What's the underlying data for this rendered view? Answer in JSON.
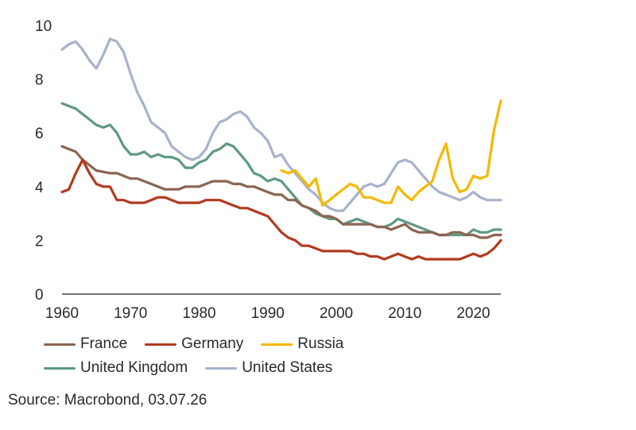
{
  "chart_data": {
    "type": "line",
    "title": "",
    "xlabel": "",
    "ylabel": "",
    "xlim": [
      1960,
      2024
    ],
    "ylim": [
      0,
      10
    ],
    "x_ticks": [
      1960,
      1970,
      1980,
      1990,
      2000,
      2010,
      2020
    ],
    "y_ticks": [
      0,
      2,
      4,
      6,
      8,
      10
    ],
    "grid": false,
    "legend_position": "bottom",
    "series": [
      {
        "name": "France",
        "color": "#8b6552",
        "points": [
          [
            1960,
            5.5
          ],
          [
            1962,
            5.3
          ],
          [
            1963,
            5.0
          ],
          [
            1965,
            4.6
          ],
          [
            1967,
            4.5
          ],
          [
            1968,
            4.5
          ],
          [
            1970,
            4.3
          ],
          [
            1971,
            4.3
          ],
          [
            1973,
            4.1
          ],
          [
            1975,
            3.9
          ],
          [
            1977,
            3.9
          ],
          [
            1978,
            4.0
          ],
          [
            1980,
            4.0
          ],
          [
            1982,
            4.2
          ],
          [
            1984,
            4.2
          ],
          [
            1985,
            4.1
          ],
          [
            1986,
            4.1
          ],
          [
            1987,
            4.0
          ],
          [
            1988,
            4.0
          ],
          [
            1990,
            3.8
          ],
          [
            1991,
            3.7
          ],
          [
            1992,
            3.7
          ],
          [
            1993,
            3.5
          ],
          [
            1994,
            3.5
          ],
          [
            1995,
            3.3
          ],
          [
            1996,
            3.2
          ],
          [
            1997,
            3.1
          ],
          [
            1998,
            2.9
          ],
          [
            1999,
            2.9
          ],
          [
            2000,
            2.8
          ],
          [
            2001,
            2.6
          ],
          [
            2002,
            2.6
          ],
          [
            2003,
            2.6
          ],
          [
            2004,
            2.6
          ],
          [
            2005,
            2.6
          ],
          [
            2006,
            2.5
          ],
          [
            2007,
            2.5
          ],
          [
            2008,
            2.4
          ],
          [
            2009,
            2.5
          ],
          [
            2010,
            2.6
          ],
          [
            2011,
            2.4
          ],
          [
            2012,
            2.3
          ],
          [
            2013,
            2.3
          ],
          [
            2014,
            2.3
          ],
          [
            2015,
            2.2
          ],
          [
            2016,
            2.2
          ],
          [
            2017,
            2.3
          ],
          [
            2018,
            2.3
          ],
          [
            2019,
            2.2
          ],
          [
            2020,
            2.2
          ],
          [
            2021,
            2.1
          ],
          [
            2022,
            2.1
          ],
          [
            2023,
            2.2
          ],
          [
            2024,
            2.2
          ]
        ]
      },
      {
        "name": "Germany",
        "color": "#b23a1f",
        "points": [
          [
            1960,
            3.8
          ],
          [
            1961,
            3.9
          ],
          [
            1962,
            4.5
          ],
          [
            1963,
            5.0
          ],
          [
            1964,
            4.5
          ],
          [
            1965,
            4.1
          ],
          [
            1966,
            4.0
          ],
          [
            1967,
            4.0
          ],
          [
            1968,
            3.5
          ],
          [
            1969,
            3.5
          ],
          [
            1970,
            3.4
          ],
          [
            1971,
            3.4
          ],
          [
            1972,
            3.4
          ],
          [
            1973,
            3.5
          ],
          [
            1974,
            3.6
          ],
          [
            1975,
            3.6
          ],
          [
            1976,
            3.5
          ],
          [
            1977,
            3.4
          ],
          [
            1978,
            3.4
          ],
          [
            1979,
            3.4
          ],
          [
            1980,
            3.4
          ],
          [
            1981,
            3.5
          ],
          [
            1982,
            3.5
          ],
          [
            1983,
            3.5
          ],
          [
            1984,
            3.4
          ],
          [
            1985,
            3.3
          ],
          [
            1986,
            3.2
          ],
          [
            1987,
            3.2
          ],
          [
            1988,
            3.1
          ],
          [
            1989,
            3.0
          ],
          [
            1990,
            2.9
          ],
          [
            1991,
            2.6
          ],
          [
            1992,
            2.3
          ],
          [
            1993,
            2.1
          ],
          [
            1994,
            2.0
          ],
          [
            1995,
            1.8
          ],
          [
            1996,
            1.8
          ],
          [
            1997,
            1.7
          ],
          [
            1998,
            1.6
          ],
          [
            1999,
            1.6
          ],
          [
            2000,
            1.6
          ],
          [
            2001,
            1.6
          ],
          [
            2002,
            1.6
          ],
          [
            2003,
            1.5
          ],
          [
            2004,
            1.5
          ],
          [
            2005,
            1.4
          ],
          [
            2006,
            1.4
          ],
          [
            2007,
            1.3
          ],
          [
            2008,
            1.4
          ],
          [
            2009,
            1.5
          ],
          [
            2010,
            1.4
          ],
          [
            2011,
            1.3
          ],
          [
            2012,
            1.4
          ],
          [
            2013,
            1.3
          ],
          [
            2014,
            1.3
          ],
          [
            2015,
            1.3
          ],
          [
            2016,
            1.3
          ],
          [
            2017,
            1.3
          ],
          [
            2018,
            1.3
          ],
          [
            2019,
            1.4
          ],
          [
            2020,
            1.5
          ],
          [
            2021,
            1.4
          ],
          [
            2022,
            1.5
          ],
          [
            2023,
            1.7
          ],
          [
            2024,
            2.0
          ]
        ]
      },
      {
        "name": "Russia",
        "color": "#f5b800",
        "points": [
          [
            1992,
            4.6
          ],
          [
            1993,
            4.5
          ],
          [
            1994,
            4.6
          ],
          [
            1995,
            4.3
          ],
          [
            1996,
            4.0
          ],
          [
            1997,
            4.3
          ],
          [
            1998,
            3.3
          ],
          [
            1999,
            3.5
          ],
          [
            2000,
            3.7
          ],
          [
            2001,
            3.9
          ],
          [
            2002,
            4.1
          ],
          [
            2003,
            4.0
          ],
          [
            2004,
            3.6
          ],
          [
            2005,
            3.6
          ],
          [
            2006,
            3.5
          ],
          [
            2007,
            3.4
          ],
          [
            2008,
            3.4
          ],
          [
            2009,
            4.0
          ],
          [
            2010,
            3.7
          ],
          [
            2011,
            3.5
          ],
          [
            2012,
            3.8
          ],
          [
            2013,
            4.0
          ],
          [
            2014,
            4.2
          ],
          [
            2015,
            5.0
          ],
          [
            2016,
            5.6
          ],
          [
            2017,
            4.3
          ],
          [
            2018,
            3.8
          ],
          [
            2019,
            3.9
          ],
          [
            2020,
            4.4
          ],
          [
            2021,
            4.3
          ],
          [
            2022,
            4.4
          ],
          [
            2023,
            6.1
          ],
          [
            2024,
            7.2
          ]
        ]
      },
      {
        "name": "United Kingdom",
        "color": "#5e9a80",
        "points": [
          [
            1960,
            7.1
          ],
          [
            1962,
            6.9
          ],
          [
            1964,
            6.5
          ],
          [
            1965,
            6.3
          ],
          [
            1966,
            6.2
          ],
          [
            1967,
            6.3
          ],
          [
            1968,
            6.0
          ],
          [
            1969,
            5.5
          ],
          [
            1970,
            5.2
          ],
          [
            1971,
            5.2
          ],
          [
            1972,
            5.3
          ],
          [
            1973,
            5.1
          ],
          [
            1974,
            5.2
          ],
          [
            1975,
            5.1
          ],
          [
            1976,
            5.1
          ],
          [
            1977,
            5.0
          ],
          [
            1978,
            4.7
          ],
          [
            1979,
            4.7
          ],
          [
            1980,
            4.9
          ],
          [
            1981,
            5.0
          ],
          [
            1982,
            5.3
          ],
          [
            1983,
            5.4
          ],
          [
            1984,
            5.6
          ],
          [
            1985,
            5.5
          ],
          [
            1986,
            5.2
          ],
          [
            1987,
            4.9
          ],
          [
            1988,
            4.5
          ],
          [
            1989,
            4.4
          ],
          [
            1990,
            4.2
          ],
          [
            1991,
            4.3
          ],
          [
            1992,
            4.2
          ],
          [
            1993,
            3.9
          ],
          [
            1994,
            3.6
          ],
          [
            1995,
            3.3
          ],
          [
            1996,
            3.2
          ],
          [
            1997,
            3.0
          ],
          [
            1998,
            2.9
          ],
          [
            1999,
            2.8
          ],
          [
            2000,
            2.8
          ],
          [
            2001,
            2.6
          ],
          [
            2002,
            2.7
          ],
          [
            2003,
            2.8
          ],
          [
            2004,
            2.7
          ],
          [
            2005,
            2.6
          ],
          [
            2006,
            2.5
          ],
          [
            2007,
            2.5
          ],
          [
            2008,
            2.6
          ],
          [
            2009,
            2.8
          ],
          [
            2010,
            2.7
          ],
          [
            2011,
            2.6
          ],
          [
            2012,
            2.5
          ],
          [
            2013,
            2.4
          ],
          [
            2014,
            2.3
          ],
          [
            2015,
            2.2
          ],
          [
            2016,
            2.2
          ],
          [
            2017,
            2.2
          ],
          [
            2018,
            2.2
          ],
          [
            2019,
            2.2
          ],
          [
            2020,
            2.4
          ],
          [
            2021,
            2.3
          ],
          [
            2022,
            2.3
          ],
          [
            2023,
            2.4
          ],
          [
            2024,
            2.4
          ]
        ]
      },
      {
        "name": "United States",
        "color": "#a8b2cc",
        "points": [
          [
            1960,
            9.1
          ],
          [
            1961,
            9.3
          ],
          [
            1962,
            9.4
          ],
          [
            1963,
            9.1
          ],
          [
            1964,
            8.7
          ],
          [
            1965,
            8.4
          ],
          [
            1966,
            8.9
          ],
          [
            1967,
            9.5
          ],
          [
            1968,
            9.4
          ],
          [
            1969,
            9.0
          ],
          [
            1970,
            8.2
          ],
          [
            1971,
            7.5
          ],
          [
            1972,
            7.0
          ],
          [
            1973,
            6.4
          ],
          [
            1974,
            6.2
          ],
          [
            1975,
            6.0
          ],
          [
            1976,
            5.5
          ],
          [
            1977,
            5.3
          ],
          [
            1978,
            5.1
          ],
          [
            1979,
            5.0
          ],
          [
            1980,
            5.1
          ],
          [
            1981,
            5.4
          ],
          [
            1982,
            6.0
          ],
          [
            1983,
            6.4
          ],
          [
            1984,
            6.5
          ],
          [
            1985,
            6.7
          ],
          [
            1986,
            6.8
          ],
          [
            1987,
            6.6
          ],
          [
            1988,
            6.2
          ],
          [
            1989,
            6.0
          ],
          [
            1990,
            5.7
          ],
          [
            1991,
            5.1
          ],
          [
            1992,
            5.2
          ],
          [
            1993,
            4.8
          ],
          [
            1994,
            4.5
          ],
          [
            1995,
            4.2
          ],
          [
            1996,
            3.9
          ],
          [
            1997,
            3.7
          ],
          [
            1998,
            3.4
          ],
          [
            1999,
            3.2
          ],
          [
            2000,
            3.1
          ],
          [
            2001,
            3.1
          ],
          [
            2002,
            3.4
          ],
          [
            2003,
            3.7
          ],
          [
            2004,
            4.0
          ],
          [
            2005,
            4.1
          ],
          [
            2006,
            4.0
          ],
          [
            2007,
            4.1
          ],
          [
            2008,
            4.5
          ],
          [
            2009,
            4.9
          ],
          [
            2010,
            5.0
          ],
          [
            2011,
            4.9
          ],
          [
            2012,
            4.6
          ],
          [
            2013,
            4.3
          ],
          [
            2014,
            4.0
          ],
          [
            2015,
            3.8
          ],
          [
            2016,
            3.7
          ],
          [
            2017,
            3.6
          ],
          [
            2018,
            3.5
          ],
          [
            2019,
            3.6
          ],
          [
            2020,
            3.8
          ],
          [
            2021,
            3.6
          ],
          [
            2022,
            3.5
          ],
          [
            2023,
            3.5
          ],
          [
            2024,
            3.5
          ]
        ]
      }
    ]
  },
  "legend": {
    "row1": [
      "France",
      "Germany",
      "Russia"
    ],
    "row2": [
      "United Kingdom",
      "United States"
    ]
  },
  "source": "Source: Macrobond, 03.07.26"
}
